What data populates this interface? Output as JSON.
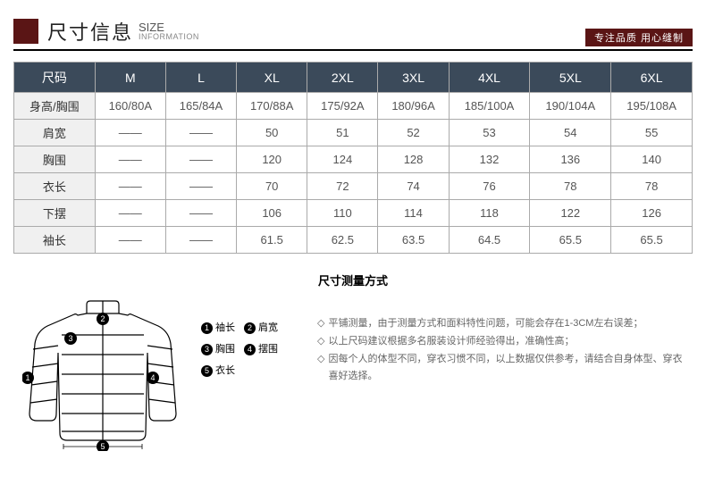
{
  "header": {
    "title_cn": "尺寸信息",
    "title_en_top": "SIZE",
    "title_en_bottom": "INFORMATION",
    "tag": "专注品质 用心缝制",
    "block_color": "#5a1515"
  },
  "table": {
    "header_bg": "#3b4a5a",
    "border_color": "#aaaaaa",
    "columns": [
      "尺码",
      "M",
      "L",
      "XL",
      "2XL",
      "3XL",
      "4XL",
      "5XL",
      "6XL"
    ],
    "rows": [
      [
        "身高/胸围",
        "160/80A",
        "165/84A",
        "170/88A",
        "175/92A",
        "180/96A",
        "185/100A",
        "190/104A",
        "195/108A"
      ],
      [
        "肩宽",
        "——",
        "——",
        "50",
        "51",
        "52",
        "53",
        "54",
        "55"
      ],
      [
        "胸围",
        "——",
        "——",
        "120",
        "124",
        "128",
        "132",
        "136",
        "140"
      ],
      [
        "衣长",
        "——",
        "——",
        "70",
        "72",
        "74",
        "76",
        "78",
        "78"
      ],
      [
        "下摆",
        "——",
        "——",
        "106",
        "110",
        "114",
        "118",
        "122",
        "126"
      ],
      [
        "袖长",
        "——",
        "——",
        "61.5",
        "62.5",
        "63.5",
        "64.5",
        "65.5",
        "65.5"
      ]
    ]
  },
  "measure": {
    "title": "尺寸测量方式",
    "legend": [
      {
        "num": "1",
        "label": "袖长"
      },
      {
        "num": "2",
        "label": "肩宽"
      },
      {
        "num": "3",
        "label": "胸围"
      },
      {
        "num": "4",
        "label": "摆围"
      },
      {
        "num": "5",
        "label": "衣长"
      }
    ],
    "notes": [
      "平铺测量，由于测量方式和面料特性问题，可能会存在1-3CM左右误差；",
      "以上尺码建议根据多名服装设计师经验得出，准确性高；",
      "因每个人的体型不同，穿衣习惯不同，以上数据仅供参考，请结合自身体型、穿衣喜好选择。"
    ],
    "diamond": "◇",
    "jacket_markers": [
      "1",
      "2",
      "3",
      "4",
      "5"
    ]
  }
}
